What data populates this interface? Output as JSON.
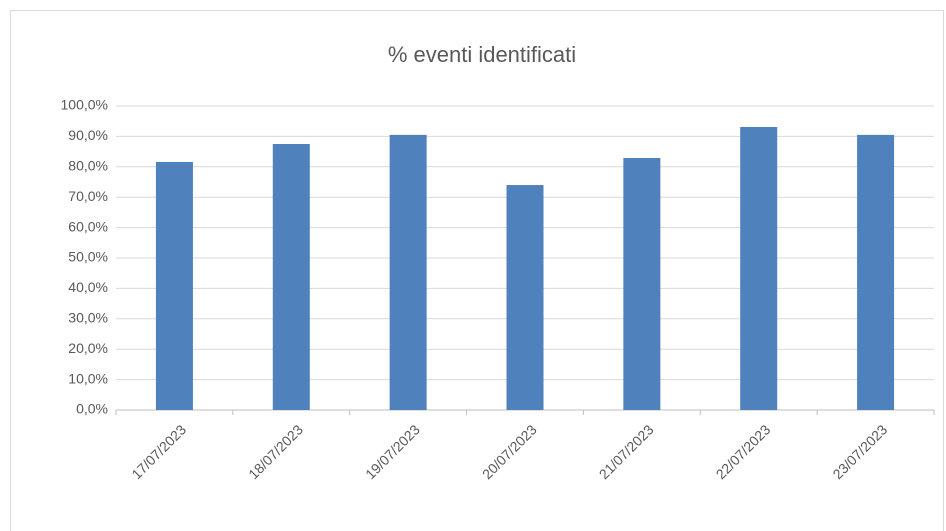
{
  "chart_data": {
    "type": "bar",
    "title": "% eventi identificati",
    "categories": [
      "17/07/2023",
      "18/07/2023",
      "19/07/2023",
      "20/07/2023",
      "21/07/2023",
      "22/07/2023",
      "23/07/2023"
    ],
    "values": [
      81.6,
      87.5,
      90.5,
      74.0,
      82.9,
      93.1,
      90.5
    ],
    "color": "#4f81bd",
    "ylim": [
      0,
      100
    ],
    "yticks": [
      {
        "value": 0,
        "label": "0,0%"
      },
      {
        "value": 10,
        "label": "10,0%"
      },
      {
        "value": 20,
        "label": "20,0%"
      },
      {
        "value": 30,
        "label": "30,0%"
      },
      {
        "value": 40,
        "label": "40,0%"
      },
      {
        "value": 50,
        "label": "50,0%"
      },
      {
        "value": 60,
        "label": "60,0%"
      },
      {
        "value": 70,
        "label": "70,0%"
      },
      {
        "value": 80,
        "label": "80,0%"
      },
      {
        "value": 90,
        "label": "90,0%"
      },
      {
        "value": 100,
        "label": "100,0%"
      }
    ],
    "grid": true
  }
}
